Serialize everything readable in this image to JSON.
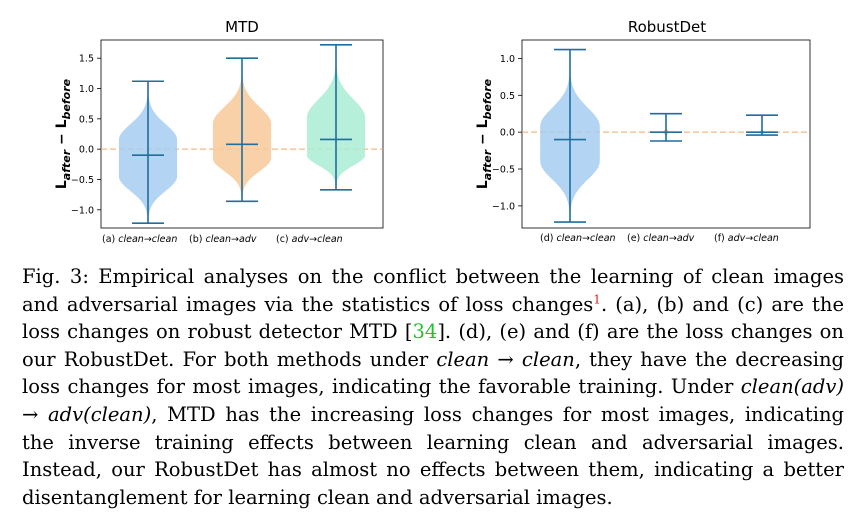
{
  "chart_data": [
    {
      "type": "violin",
      "title": "MTD",
      "ylabel": "L_after − L_before",
      "ylim": [
        -1.3,
        1.8
      ],
      "yticks": [
        -1.0,
        -0.5,
        0.0,
        0.5,
        1.0,
        1.5
      ],
      "ytick_labels": [
        "−1.0",
        "−0.5",
        "0.0",
        "0.5",
        "1.0",
        "1.5"
      ],
      "reference_line": 0.0,
      "categories": [
        "(a) clean→clean",
        "(b) clean→adv",
        "(c) adv→clean"
      ],
      "violins": [
        {
          "label_prefix": "(a)",
          "label_from": "clean",
          "label_to": "clean",
          "color": "#a6cdf0",
          "min": -1.22,
          "max": 1.12,
          "median": -0.1,
          "core": [
            -0.45,
            0.15
          ],
          "tails": [
            -0.95,
            0.7
          ],
          "spread": 0.62
        },
        {
          "label_prefix": "(b)",
          "label_from": "clean",
          "label_to": "adv",
          "color": "#f8c99a",
          "min": -0.86,
          "max": 1.5,
          "median": 0.08,
          "core": [
            -0.15,
            0.42
          ],
          "tails": [
            -0.6,
            1.0
          ],
          "spread": 0.62
        },
        {
          "label_prefix": "(c)",
          "label_from": "adv",
          "label_to": "clean",
          "color": "#a9ecd4",
          "min": -0.67,
          "max": 1.72,
          "median": 0.16,
          "core": [
            -0.1,
            0.52
          ],
          "tails": [
            -0.45,
            1.15
          ],
          "spread": 0.62
        }
      ]
    },
    {
      "type": "violin",
      "title": "RobustDet",
      "ylabel": "L_after − L_before",
      "ylim": [
        -1.3,
        1.25
      ],
      "yticks": [
        -1.0,
        -0.5,
        0.0,
        0.5,
        1.0
      ],
      "ytick_labels": [
        "−1.0",
        "−0.5",
        "0.0",
        "0.5",
        "1.0"
      ],
      "reference_line": 0.0,
      "categories": [
        "(d) clean→clean",
        "(e) clean→adv",
        "(f) adv→clean"
      ],
      "violins": [
        {
          "label_prefix": "(d)",
          "label_from": "clean",
          "label_to": "clean",
          "color": "#a6cdf0",
          "min": -1.22,
          "max": 1.12,
          "median": -0.1,
          "core": [
            -0.4,
            0.08
          ],
          "tails": [
            -0.9,
            0.6
          ],
          "spread": 0.62
        },
        {
          "label_prefix": "(e)",
          "label_from": "clean",
          "label_to": "adv",
          "color": "#f8c99a",
          "min": -0.12,
          "max": 0.25,
          "median": 0.0,
          "core": [
            -0.02,
            0.02
          ],
          "tails": [
            -0.05,
            0.05
          ],
          "spread": 0.05
        },
        {
          "label_prefix": "(f)",
          "label_from": "adv",
          "label_to": "clean",
          "color": "#a9ecd4",
          "min": -0.04,
          "max": 0.23,
          "median": 0.0,
          "core": [
            -0.02,
            0.02
          ],
          "tails": [
            -0.03,
            0.04
          ],
          "spread": 0.04
        }
      ]
    }
  ],
  "caption": {
    "label": "Fig. 3:",
    "part1": " Empirical analyses on the conflict between the learning of clean images and adversarial images via the statistics of loss changes",
    "footnote": "1",
    "part2": ". (a), (b) and (c) are the loss changes on robust detector MTD [",
    "ref": "34",
    "part3": "]. (d), (e) and (f) are the loss changes on our RobustDet. For both methods under ",
    "math_clean1": "clean",
    "arrow1": " → ",
    "math_clean2": "clean",
    "part4": ", they have the decreasing loss changes for most images, indicating the favorable training. Under ",
    "math_expr": "clean(adv) → adv(clean)",
    "part5": ", MTD has the increasing loss changes for most images, indicating the inverse training effects between learning clean and adversarial images. Instead, our RobustDet has almost no effects between them, indicating a better disentanglement for learning clean and adversarial images."
  }
}
